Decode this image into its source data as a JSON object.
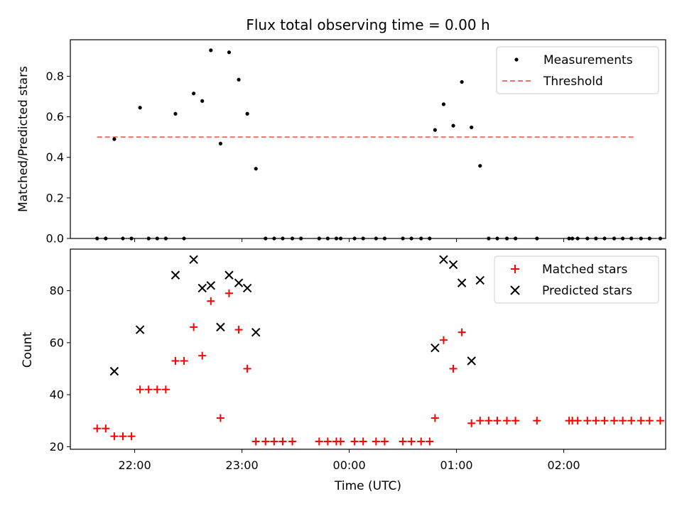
{
  "chart_data": [
    {
      "type": "scatter",
      "title": "Flux total observing time = 0.00 h",
      "xlabel": "",
      "ylabel": "Matched/Predicted stars",
      "ylim": [
        0,
        0.98
      ],
      "xlim": [
        -0.6,
        4.95
      ],
      "x_unit": "hours after 21:00 UTC",
      "yticks": [
        "0.0",
        "0.2",
        "0.4",
        "0.6",
        "0.8"
      ],
      "legend": {
        "placement": "top-right",
        "entries": [
          "Measurements",
          "Threshold"
        ]
      },
      "threshold": {
        "name": "Threshold",
        "value": 0.5,
        "x_range": [
          -0.35,
          4.67
        ],
        "color": "#ff6b6b",
        "style": "dashed"
      },
      "series": [
        {
          "name": "Measurements",
          "marker": "dot",
          "color": "#000000",
          "points": [
            [
              -0.35,
              0.0
            ],
            [
              -0.27,
              0.0
            ],
            [
              -0.19,
              0.49
            ],
            [
              -0.11,
              0.0
            ],
            [
              -0.03,
              0.0
            ],
            [
              0.05,
              0.645
            ],
            [
              0.13,
              0.0
            ],
            [
              0.21,
              0.0
            ],
            [
              0.29,
              0.0
            ],
            [
              0.38,
              0.615
            ],
            [
              0.46,
              0.0
            ],
            [
              0.55,
              0.715
            ],
            [
              0.63,
              0.678
            ],
            [
              0.71,
              0.928
            ],
            [
              0.8,
              0.468
            ],
            [
              0.88,
              0.918
            ],
            [
              0.97,
              0.783
            ],
            [
              1.05,
              0.615
            ],
            [
              1.13,
              0.344
            ],
            [
              1.22,
              0.0
            ],
            [
              1.3,
              0.0
            ],
            [
              1.38,
              0.0
            ],
            [
              1.47,
              0.0
            ],
            [
              1.55,
              0.0
            ],
            [
              1.72,
              0.0
            ],
            [
              1.8,
              0.0
            ],
            [
              1.88,
              0.0
            ],
            [
              1.92,
              0.0
            ],
            [
              2.05,
              0.0
            ],
            [
              2.13,
              0.0
            ],
            [
              2.25,
              0.0
            ],
            [
              2.33,
              0.0
            ],
            [
              2.5,
              0.0
            ],
            [
              2.58,
              0.0
            ],
            [
              2.67,
              0.0
            ],
            [
              2.75,
              0.0
            ],
            [
              2.8,
              0.535
            ],
            [
              2.88,
              0.662
            ],
            [
              2.97,
              0.556
            ],
            [
              3.05,
              0.772
            ],
            [
              3.14,
              0.548
            ],
            [
              3.22,
              0.358
            ],
            [
              3.3,
              0.0
            ],
            [
              3.38,
              0.0
            ],
            [
              3.47,
              0.0
            ],
            [
              3.55,
              0.0
            ],
            [
              3.75,
              0.0
            ],
            [
              4.05,
              0.0
            ],
            [
              4.08,
              0.0
            ],
            [
              4.13,
              0.0
            ],
            [
              4.22,
              0.0
            ],
            [
              4.3,
              0.0
            ],
            [
              4.38,
              0.0
            ],
            [
              4.47,
              0.0
            ],
            [
              4.55,
              0.0
            ],
            [
              4.63,
              0.0
            ],
            [
              4.72,
              0.0
            ],
            [
              4.8,
              0.0
            ],
            [
              4.9,
              0.0
            ]
          ]
        }
      ]
    },
    {
      "type": "scatter",
      "title": "",
      "xlabel": "Time (UTC)",
      "ylabel": "Count",
      "ylim": [
        19,
        96
      ],
      "xlim": [
        -0.6,
        4.95
      ],
      "x_unit": "hours after 21:00 UTC",
      "xticks": [
        {
          "x": 0,
          "label": "22:00"
        },
        {
          "x": 1,
          "label": "23:00"
        },
        {
          "x": 2,
          "label": "00:00"
        },
        {
          "x": 3,
          "label": "01:00"
        },
        {
          "x": 4,
          "label": "02:00"
        }
      ],
      "yticks": [
        "20",
        "40",
        "60",
        "80"
      ],
      "legend": {
        "placement": "top-right",
        "entries": [
          "Matched stars",
          "Predicted stars"
        ]
      },
      "series": [
        {
          "name": "Matched stars",
          "marker": "plus",
          "color": "#ff0000",
          "points": [
            [
              -0.35,
              27
            ],
            [
              -0.27,
              27
            ],
            [
              -0.19,
              24
            ],
            [
              -0.11,
              24
            ],
            [
              -0.03,
              24
            ],
            [
              0.05,
              42
            ],
            [
              0.13,
              42
            ],
            [
              0.21,
              42
            ],
            [
              0.29,
              42
            ],
            [
              0.38,
              53
            ],
            [
              0.46,
              53
            ],
            [
              0.55,
              66
            ],
            [
              0.63,
              55
            ],
            [
              0.71,
              76
            ],
            [
              0.8,
              31
            ],
            [
              0.88,
              79
            ],
            [
              0.97,
              65
            ],
            [
              1.05,
              50
            ],
            [
              1.13,
              22
            ],
            [
              1.22,
              22
            ],
            [
              1.3,
              22
            ],
            [
              1.38,
              22
            ],
            [
              1.47,
              22
            ],
            [
              1.72,
              22
            ],
            [
              1.8,
              22
            ],
            [
              1.88,
              22
            ],
            [
              1.92,
              22
            ],
            [
              2.05,
              22
            ],
            [
              2.13,
              22
            ],
            [
              2.25,
              22
            ],
            [
              2.33,
              22
            ],
            [
              2.5,
              22
            ],
            [
              2.58,
              22
            ],
            [
              2.67,
              22
            ],
            [
              2.75,
              22
            ],
            [
              2.8,
              31
            ],
            [
              2.88,
              61
            ],
            [
              2.97,
              50
            ],
            [
              3.05,
              64
            ],
            [
              3.14,
              29
            ],
            [
              3.22,
              30
            ],
            [
              3.3,
              30
            ],
            [
              3.38,
              30
            ],
            [
              3.47,
              30
            ],
            [
              3.55,
              30
            ],
            [
              3.75,
              30
            ],
            [
              4.05,
              30
            ],
            [
              4.08,
              30
            ],
            [
              4.13,
              30
            ],
            [
              4.22,
              30
            ],
            [
              4.3,
              30
            ],
            [
              4.38,
              30
            ],
            [
              4.47,
              30
            ],
            [
              4.55,
              30
            ],
            [
              4.63,
              30
            ],
            [
              4.72,
              30
            ],
            [
              4.8,
              30
            ],
            [
              4.9,
              30
            ]
          ]
        },
        {
          "name": "Predicted stars",
          "marker": "x",
          "color": "#000000",
          "points": [
            [
              -0.19,
              49
            ],
            [
              0.05,
              65
            ],
            [
              0.38,
              86
            ],
            [
              0.55,
              92
            ],
            [
              0.63,
              81
            ],
            [
              0.71,
              82
            ],
            [
              0.8,
              66
            ],
            [
              0.88,
              86
            ],
            [
              0.97,
              83
            ],
            [
              1.05,
              81
            ],
            [
              1.13,
              64
            ],
            [
              2.8,
              58
            ],
            [
              2.88,
              92
            ],
            [
              2.97,
              90
            ],
            [
              3.05,
              83
            ],
            [
              3.14,
              53
            ],
            [
              3.22,
              84
            ]
          ]
        }
      ]
    }
  ]
}
